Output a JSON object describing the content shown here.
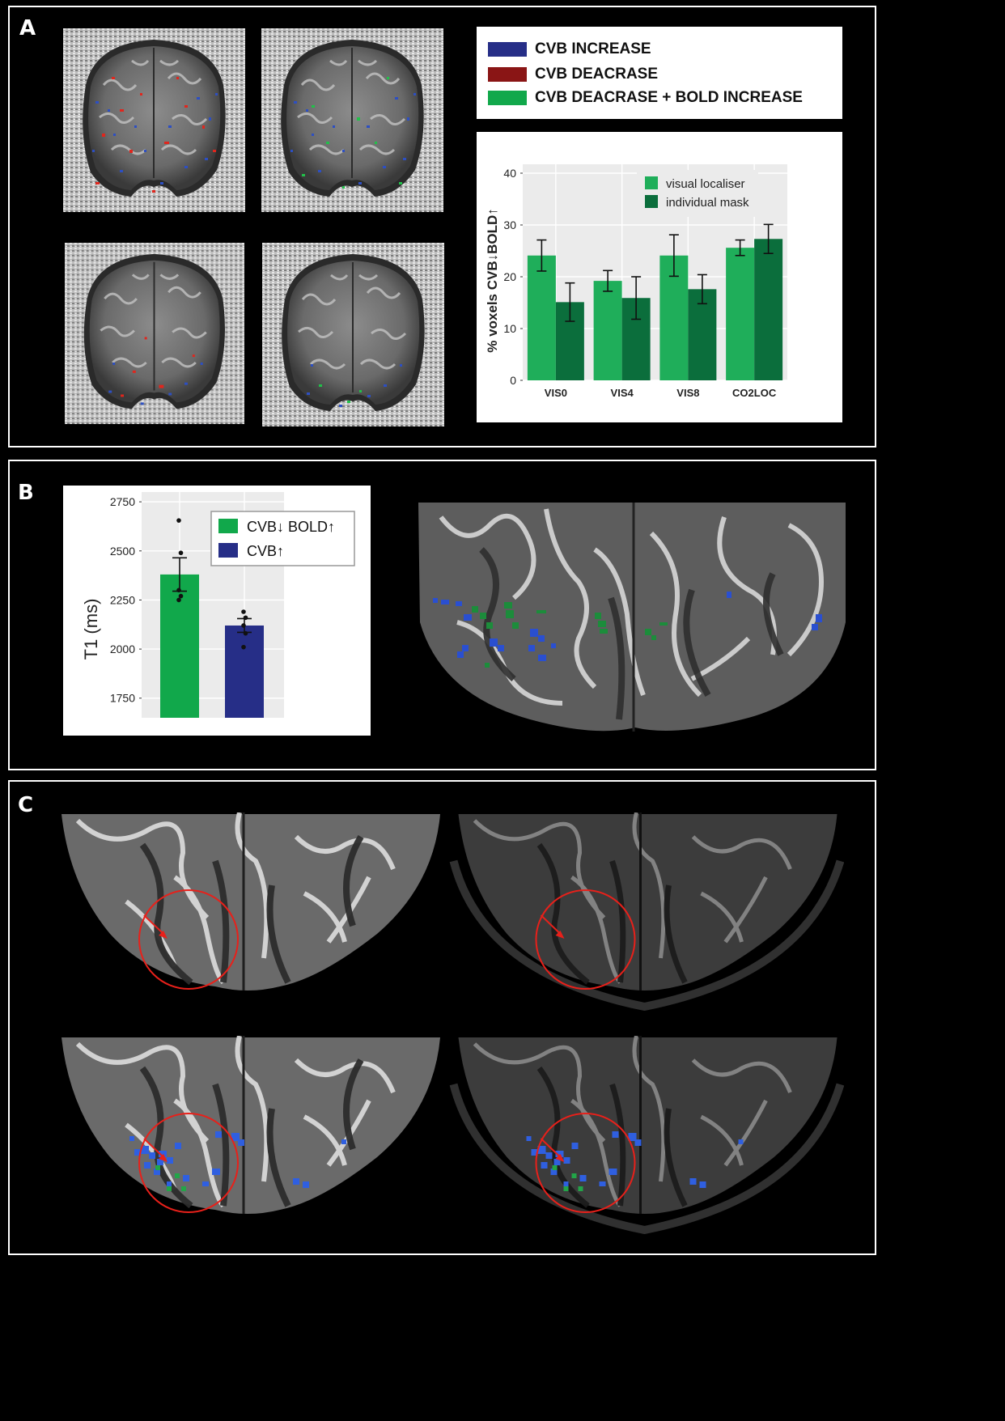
{
  "panels": {
    "a": "A",
    "b": "B",
    "c": "C"
  },
  "panel_a_legend": {
    "items": [
      {
        "label": "CVB INCREASE",
        "color": "#262e87"
      },
      {
        "label": "CVB DEACRASE",
        "color": "#8a1515"
      },
      {
        "label": "CVB DEACRASE + BOLD INCREASE",
        "color": "#11a84b"
      }
    ]
  },
  "chart_data": [
    {
      "type": "bar",
      "categories": [
        "VIS0",
        "VIS4",
        "VIS8",
        "CO2LOC"
      ],
      "series": [
        {
          "name": "visual localiser",
          "color": "#1fae5a",
          "values": [
            24.1,
            19.2,
            24.1,
            25.6
          ],
          "error": [
            3.0,
            2.0,
            4.0,
            1.5
          ]
        },
        {
          "name": "individual mask",
          "color": "#0b6e3c",
          "values": [
            15.1,
            15.9,
            17.6,
            27.3
          ],
          "error": [
            3.7,
            4.1,
            2.8,
            2.8
          ]
        }
      ],
      "ylabel": "% voxels CVB↓BOLD↑",
      "xlabel": "",
      "ylim": [
        0,
        40
      ],
      "yticks": [
        0,
        10,
        20,
        30,
        40
      ],
      "grid": true,
      "legend": "top-right"
    },
    {
      "type": "bar",
      "categories": [
        "CVB↓ BOLD↑",
        "CVB↑"
      ],
      "values": [
        2380,
        2120
      ],
      "error": [
        85,
        35
      ],
      "points": [
        [
          2655,
          2490,
          2300,
          2270,
          2250
        ],
        [
          2190,
          2160,
          2120,
          2080,
          2010
        ]
      ],
      "colors": [
        "#11a84b",
        "#262e87"
      ],
      "ylabel": "T1 (ms)",
      "ylim": [
        1650,
        2800
      ],
      "yticks": [
        1750,
        2000,
        2250,
        2500,
        2750
      ],
      "grid": true,
      "legend": "top-right",
      "legend_labels": [
        "CVB↓ BOLD↑",
        "CVB↑"
      ]
    }
  ]
}
